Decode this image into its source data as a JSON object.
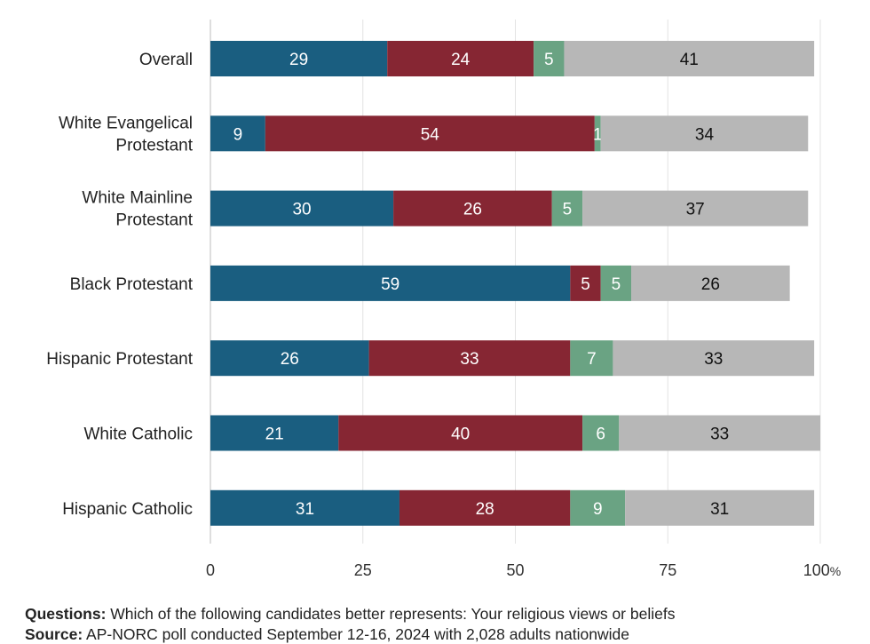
{
  "chart_data": {
    "type": "bar",
    "orientation": "horizontal",
    "stacked": true,
    "categories": [
      [
        "Overall"
      ],
      [
        "White Evangelical",
        "Protestant"
      ],
      [
        "White Mainline",
        "Protestant"
      ],
      [
        "Black Protestant"
      ],
      [
        "Hispanic Protestant"
      ],
      [
        "White Catholic"
      ],
      [
        "Hispanic Catholic"
      ]
    ],
    "series": [
      {
        "color": "#1a5e80",
        "label_color": "#ffffff",
        "values": [
          29,
          9,
          30,
          59,
          26,
          21,
          31
        ]
      },
      {
        "color": "#862633",
        "label_color": "#ffffff",
        "values": [
          24,
          54,
          26,
          5,
          33,
          40,
          28
        ]
      },
      {
        "color": "#6aa383",
        "label_color": "#ffffff",
        "values": [
          5,
          1,
          5,
          5,
          7,
          6,
          9
        ]
      },
      {
        "color": "#b7b7b7",
        "label_color": "#111111",
        "values": [
          41,
          34,
          37,
          26,
          33,
          33,
          31
        ]
      }
    ],
    "xlim": [
      0,
      100
    ],
    "xticks": [
      0,
      25,
      50,
      75,
      100
    ],
    "xunit": "%",
    "grid": true
  },
  "footnotes": {
    "questions_label": "Questions:",
    "questions_text": " Which of the following candidates better represents: Your religious views or beliefs",
    "source_label": "Source:",
    "source_text": " AP-NORC poll conducted September 12-16, 2024 with 2,028 adults nationwide"
  }
}
